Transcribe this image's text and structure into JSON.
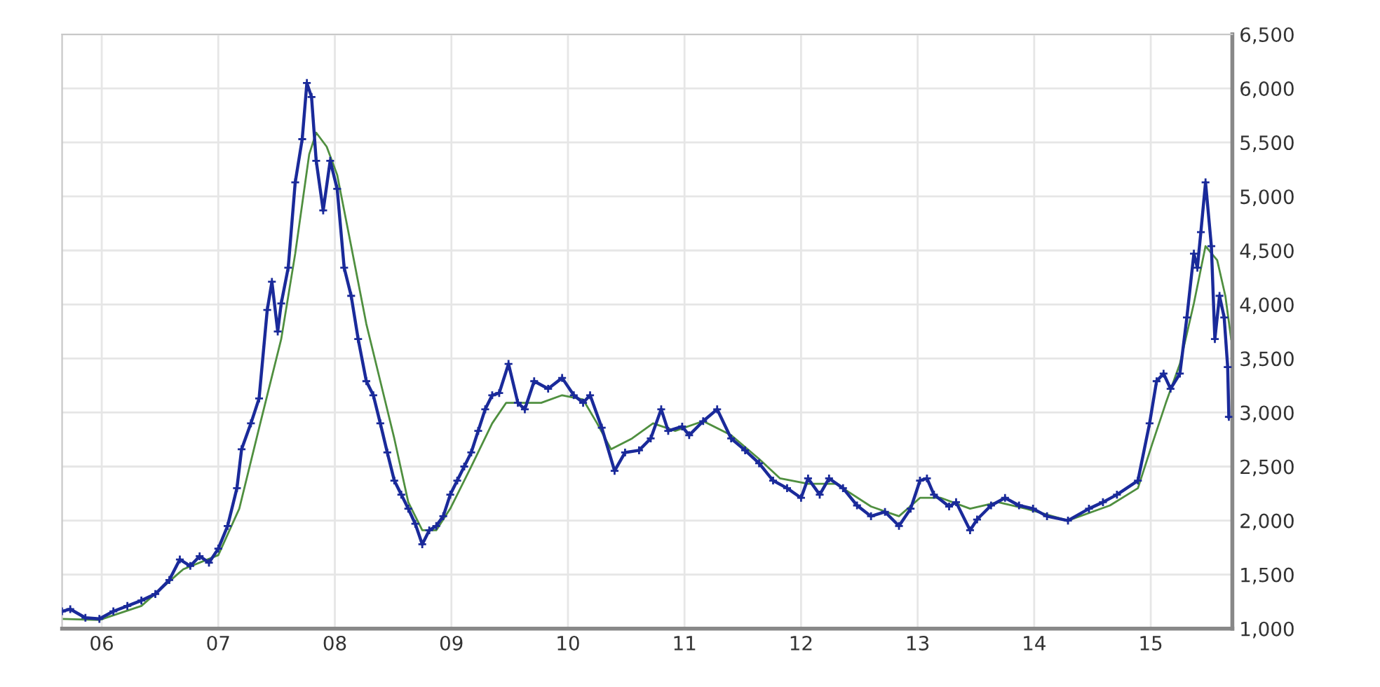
{
  "chart_data": {
    "type": "line",
    "xlim": [
      2005.66,
      2015.7
    ],
    "ylim": [
      1000,
      6500
    ],
    "xticks": [
      {
        "value": 2006,
        "label": "06"
      },
      {
        "value": 2007,
        "label": "07"
      },
      {
        "value": 2008,
        "label": "08"
      },
      {
        "value": 2009,
        "label": "09"
      },
      {
        "value": 2010,
        "label": "10"
      },
      {
        "value": 2011,
        "label": "11"
      },
      {
        "value": 2012,
        "label": "12"
      },
      {
        "value": 2013,
        "label": "13"
      },
      {
        "value": 2014,
        "label": "14"
      },
      {
        "value": 2015,
        "label": "15"
      }
    ],
    "yticks": [
      {
        "value": 1000,
        "label": "1,000"
      },
      {
        "value": 1500,
        "label": "1,500"
      },
      {
        "value": 2000,
        "label": "2,000"
      },
      {
        "value": 2500,
        "label": "2,500"
      },
      {
        "value": 3000,
        "label": "3,000"
      },
      {
        "value": 3500,
        "label": "3,500"
      },
      {
        "value": 4000,
        "label": "4,000"
      },
      {
        "value": 4500,
        "label": "4,500"
      },
      {
        "value": 5000,
        "label": "5,000"
      },
      {
        "value": 5500,
        "label": "5,500"
      },
      {
        "value": 6000,
        "label": "6,000"
      },
      {
        "value": 6500,
        "label": "6,500"
      }
    ],
    "grid": true,
    "series": [
      {
        "color": "#4f8f3f",
        "x": [
          2005.66,
          2005.98,
          2006.34,
          2006.7,
          2007.0,
          2007.18,
          2007.36,
          2007.54,
          2007.66,
          2007.78,
          2007.84,
          2007.93,
          2008.02,
          2008.14,
          2008.27,
          2008.39,
          2008.51,
          2008.63,
          2008.75,
          2008.87,
          2008.99,
          2009.17,
          2009.35,
          2009.47,
          2009.59,
          2009.77,
          2009.95,
          2010.13,
          2010.25,
          2010.37,
          2010.55,
          2010.73,
          2010.92,
          2011.16,
          2011.4,
          2011.64,
          2011.82,
          2012.06,
          2012.3,
          2012.6,
          2012.84,
          2013.02,
          2013.2,
          2013.45,
          2013.69,
          2013.93,
          2014.29,
          2014.65,
          2014.89,
          2015.01,
          2015.13,
          2015.25,
          2015.37,
          2015.47,
          2015.57,
          2015.64,
          2015.69
        ],
        "values": [
          1090,
          1080,
          1210,
          1550,
          1680,
          2110,
          2900,
          3680,
          4470,
          5390,
          5590,
          5460,
          5200,
          4540,
          3820,
          3290,
          2760,
          2170,
          1910,
          1910,
          2110,
          2500,
          2900,
          3090,
          3090,
          3090,
          3160,
          3120,
          2900,
          2660,
          2760,
          2900,
          2830,
          2920,
          2790,
          2570,
          2390,
          2340,
          2340,
          2130,
          2040,
          2210,
          2210,
          2110,
          2170,
          2110,
          2000,
          2140,
          2300,
          2700,
          3090,
          3450,
          4010,
          4540,
          4410,
          4080,
          3680
        ]
      },
      {
        "color": "#1a2a9a",
        "marker": "cross",
        "x": [
          2005.66,
          2005.73,
          2005.86,
          2005.98,
          2006.1,
          2006.22,
          2006.34,
          2006.46,
          2006.58,
          2006.67,
          2006.76,
          2006.84,
          2006.92,
          2007.0,
          2007.08,
          2007.16,
          2007.2,
          2007.28,
          2007.35,
          2007.42,
          2007.46,
          2007.51,
          2007.54,
          2007.6,
          2007.66,
          2007.72,
          2007.76,
          2007.8,
          2007.84,
          2007.9,
          2007.96,
          2008.02,
          2008.08,
          2008.14,
          2008.2,
          2008.27,
          2008.33,
          2008.39,
          2008.45,
          2008.51,
          2008.57,
          2008.63,
          2008.69,
          2008.75,
          2008.81,
          2008.87,
          2008.93,
          2008.99,
          2009.05,
          2009.11,
          2009.17,
          2009.23,
          2009.29,
          2009.35,
          2009.41,
          2009.49,
          2009.57,
          2009.63,
          2009.71,
          2009.83,
          2009.95,
          2010.05,
          2010.13,
          2010.19,
          2010.29,
          2010.4,
          2010.49,
          2010.61,
          2010.71,
          2010.8,
          2010.86,
          2010.98,
          2011.04,
          2011.16,
          2011.28,
          2011.4,
          2011.52,
          2011.64,
          2011.76,
          2011.88,
          2012.0,
          2012.06,
          2012.16,
          2012.24,
          2012.36,
          2012.48,
          2012.6,
          2012.72,
          2012.84,
          2012.94,
          2013.02,
          2013.08,
          2013.14,
          2013.27,
          2013.33,
          2013.45,
          2013.51,
          2013.63,
          2013.75,
          2013.87,
          2013.99,
          2014.11,
          2014.29,
          2014.47,
          2014.59,
          2014.71,
          2014.89,
          2014.99,
          2015.05,
          2015.11,
          2015.17,
          2015.25,
          2015.31,
          2015.37,
          2015.4,
          2015.43,
          2015.47,
          2015.52,
          2015.55,
          2015.59,
          2015.63,
          2015.66,
          2015.67
        ],
        "values": [
          1160,
          1180,
          1100,
          1090,
          1160,
          1210,
          1260,
          1320,
          1450,
          1640,
          1580,
          1670,
          1610,
          1740,
          1950,
          2300,
          2660,
          2900,
          3130,
          3950,
          4210,
          3750,
          4010,
          4340,
          5130,
          5530,
          6050,
          5920,
          5330,
          4870,
          5330,
          5070,
          4340,
          4080,
          3680,
          3290,
          3160,
          2900,
          2630,
          2370,
          2240,
          2110,
          1970,
          1780,
          1910,
          1950,
          2040,
          2240,
          2370,
          2500,
          2630,
          2830,
          3030,
          3160,
          3180,
          3450,
          3090,
          3030,
          3290,
          3220,
          3320,
          3160,
          3090,
          3160,
          2860,
          2460,
          2630,
          2650,
          2760,
          3030,
          2830,
          2870,
          2790,
          2920,
          3030,
          2760,
          2650,
          2530,
          2370,
          2300,
          2210,
          2390,
          2240,
          2390,
          2300,
          2140,
          2040,
          2080,
          1950,
          2110,
          2370,
          2390,
          2240,
          2130,
          2170,
          1910,
          2010,
          2140,
          2210,
          2140,
          2110,
          2040,
          2000,
          2110,
          2170,
          2240,
          2370,
          2900,
          3290,
          3360,
          3220,
          3360,
          3880,
          4470,
          4340,
          4670,
          5130,
          4540,
          3680,
          4080,
          3880,
          3420,
          2960
        ]
      }
    ]
  }
}
